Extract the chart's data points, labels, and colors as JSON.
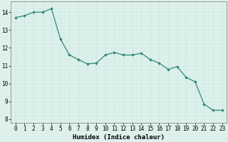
{
  "x": [
    0,
    1,
    2,
    3,
    4,
    5,
    6,
    7,
    8,
    9,
    10,
    11,
    12,
    13,
    14,
    15,
    16,
    17,
    18,
    19,
    20,
    21,
    22,
    23
  ],
  "y": [
    13.7,
    13.8,
    14.0,
    14.0,
    14.2,
    12.5,
    11.6,
    11.35,
    11.1,
    11.15,
    11.6,
    11.75,
    11.6,
    11.6,
    11.7,
    11.35,
    11.15,
    10.8,
    10.95,
    10.35,
    10.1,
    8.85,
    8.5,
    8.5
  ],
  "line_color": "#2e8b74",
  "marker": "D",
  "marker_size": 1.8,
  "line_width": 0.9,
  "xlabel": "Humidex (Indice chaleur)",
  "xlabel_fontsize": 6.5,
  "ylim": [
    7.8,
    14.6
  ],
  "xlim": [
    -0.5,
    23.5
  ],
  "yticks": [
    8,
    9,
    10,
    11,
    12,
    13,
    14
  ],
  "xticks": [
    0,
    1,
    2,
    3,
    4,
    5,
    6,
    7,
    8,
    9,
    10,
    11,
    12,
    13,
    14,
    15,
    16,
    17,
    18,
    19,
    20,
    21,
    22,
    23
  ],
  "grid_color": "#c8e8e0",
  "bg_color": "#ddf0eb",
  "tick_fontsize": 5.5,
  "fig_width": 3.2,
  "fig_height": 2.0,
  "dpi": 100
}
